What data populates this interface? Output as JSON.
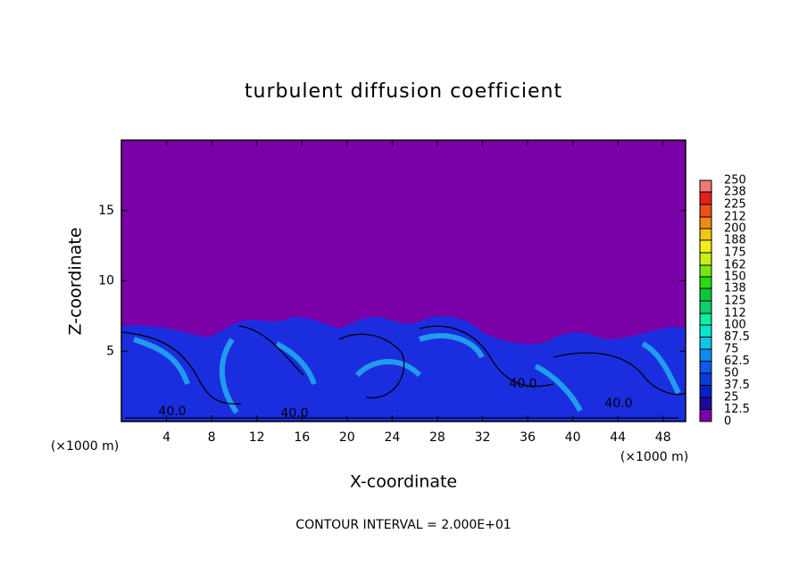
{
  "chart_data": {
    "type": "contour",
    "title": "turbulent diffusion coefficient",
    "xlabel": "X-coordinate",
    "ylabel": "Z-coordinate",
    "x_unit_labels": [
      "(×1000 m)",
      "(×1000 m)"
    ],
    "note": "CONTOUR INTERVAL = 2.000E+01",
    "xlim": [
      0,
      50
    ],
    "ylim": [
      0,
      20
    ],
    "xticks": [
      4,
      8,
      12,
      16,
      20,
      24,
      28,
      32,
      36,
      40,
      44,
      48
    ],
    "yticks": [
      5,
      10,
      15
    ],
    "contour_labels": [
      "40.0",
      "40.0",
      "40.0",
      "40.0"
    ],
    "colorbar": {
      "levels": [
        0,
        12.5,
        25,
        37.5,
        50,
        62.5,
        75,
        87.5,
        100,
        112,
        125,
        138,
        150,
        162,
        175,
        188,
        200,
        212,
        225,
        238,
        250
      ],
      "colors": [
        "#7a00a8",
        "#1e0aa0",
        "#0a1ec8",
        "#0a3cdc",
        "#0a5af0",
        "#0a8cf0",
        "#0ac8e6",
        "#0ae6c8",
        "#0af0a0",
        "#0ad270",
        "#0ac83c",
        "#28dc14",
        "#78e614",
        "#c8f014",
        "#f0f014",
        "#f0c814",
        "#f08c14",
        "#f05014",
        "#e61e1e",
        "#f07878"
      ]
    }
  }
}
